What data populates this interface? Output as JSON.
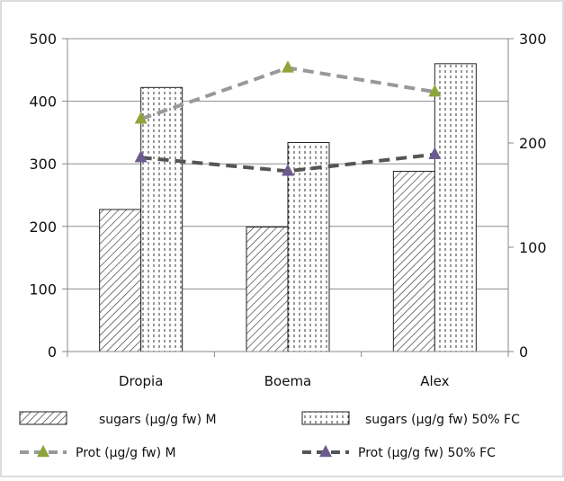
{
  "chart_data": {
    "type": "bar",
    "categories": [
      "Dropia",
      "Boema",
      "Alex"
    ],
    "series": [
      {
        "name": "sugars (µg/g fw) M",
        "kind": "bar",
        "axis": "left",
        "pattern": "diagonal-hatch",
        "values": [
          227,
          199,
          288
        ]
      },
      {
        "name": "sugars (µg/g fw) 50% FC",
        "kind": "bar",
        "axis": "left",
        "pattern": "dotted-vertical",
        "values": [
          422,
          334,
          460
        ]
      },
      {
        "name": "Prot (µg/g fw) M",
        "kind": "line",
        "axis": "right",
        "color": "#999999",
        "marker_color": "#8fa53b",
        "values": [
          223,
          272,
          249
        ]
      },
      {
        "name": "Prot (µg/g fw) 50% FC",
        "kind": "line",
        "axis": "right",
        "color": "#555555",
        "marker_color": "#6d5b8f",
        "values": [
          186,
          173,
          189
        ]
      }
    ],
    "left_axis": {
      "ylim": [
        0,
        500
      ],
      "ticks": [
        "0",
        "100",
        "200",
        "300",
        "400",
        "500"
      ]
    },
    "right_axis": {
      "ylim": [
        0,
        300
      ],
      "ticks": [
        "0",
        "100",
        "200",
        "300"
      ]
    },
    "legend_position": "bottom",
    "grid": true
  }
}
